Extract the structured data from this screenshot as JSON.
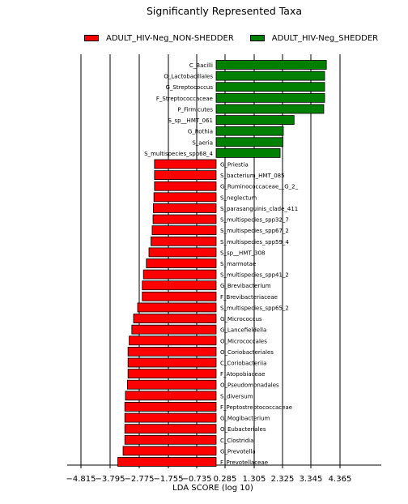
{
  "colors": {
    "non_shedder": "#ff0000",
    "shedder": "#008000",
    "axis": "#000000",
    "grid": "#000000"
  },
  "chart_data": {
    "type": "bar",
    "orientation": "horizontal",
    "title": "Significantly Represented Taxa",
    "xlabel": "LDA SCORE (log 10)",
    "ylabel": "",
    "xlim": [
      -5.4,
      5.4
    ],
    "xticks": [
      -4.815,
      -3.795,
      -2.775,
      -1.755,
      -0.735,
      0.285,
      1.305,
      2.325,
      3.345,
      4.365
    ],
    "xtick_labels": [
      "−4.815",
      "−3.795",
      "−2.775",
      "−1.755",
      "−0.735",
      "0.285",
      "1.305",
      "2.325",
      "3.345",
      "4.365"
    ],
    "grid": true,
    "legend_position": "top",
    "series": [
      {
        "name": "ADULT_HIV-Neg_NON-SHEDDER",
        "color": "#ff0000"
      },
      {
        "name": "ADULT_HIV-Neg_SHEDDER",
        "color": "#008000"
      }
    ],
    "bars": [
      {
        "label": "C_Bacilli",
        "value": 3.79,
        "series": 1
      },
      {
        "label": "O_Lactobacillales",
        "value": 3.73,
        "series": 1
      },
      {
        "label": "G_Streptococcus",
        "value": 3.73,
        "series": 1
      },
      {
        "label": "F_Streptococcaceae",
        "value": 3.73,
        "series": 1
      },
      {
        "label": "P_Firmicutes",
        "value": 3.7,
        "series": 1
      },
      {
        "label": "S_sp__HMT_061",
        "value": 2.68,
        "series": 1
      },
      {
        "label": "G_Rothia",
        "value": 2.31,
        "series": 1
      },
      {
        "label": "S_aeria",
        "value": 2.3,
        "series": 1
      },
      {
        "label": "S_multispecies_spp68_4",
        "value": 2.2,
        "series": 1
      },
      {
        "label": "G_Priestia",
        "value": -2.12,
        "series": 0
      },
      {
        "label": "S_bacterium_HMT_085",
        "value": -2.12,
        "series": 0
      },
      {
        "label": "G_Ruminococcaceae__G_2_",
        "value": -2.12,
        "series": 0
      },
      {
        "label": "S_neglectum",
        "value": -2.14,
        "series": 0
      },
      {
        "label": "S_parasanguinis_clade_411",
        "value": -2.16,
        "series": 0
      },
      {
        "label": "S_multispecies_spp32_7",
        "value": -2.17,
        "series": 0
      },
      {
        "label": "S_multispecies_spp67_2",
        "value": -2.2,
        "series": 0
      },
      {
        "label": "S_multispecies_spp59_4",
        "value": -2.24,
        "series": 0
      },
      {
        "label": "S_sp__HMT_308",
        "value": -2.31,
        "series": 0
      },
      {
        "label": "S_marmotae",
        "value": -2.4,
        "series": 0
      },
      {
        "label": "S_multispecies_spp41_2",
        "value": -2.5,
        "series": 0
      },
      {
        "label": "G_Brevibacterium",
        "value": -2.54,
        "series": 0
      },
      {
        "label": "F_Brevibacteriaceae",
        "value": -2.54,
        "series": 0
      },
      {
        "label": "S_multispecies_spp65_2",
        "value": -2.7,
        "series": 0
      },
      {
        "label": "G_Micrococcus",
        "value": -2.84,
        "series": 0
      },
      {
        "label": "G_Lancefieldella",
        "value": -2.9,
        "series": 0
      },
      {
        "label": "O_Micrococcales",
        "value": -2.99,
        "series": 0
      },
      {
        "label": "O_Coriobacteriales",
        "value": -3.03,
        "series": 0
      },
      {
        "label": "C_Coriobacteriia",
        "value": -3.03,
        "series": 0
      },
      {
        "label": "F_Atopobiaceae",
        "value": -3.03,
        "series": 0
      },
      {
        "label": "O_Pseudomonadales",
        "value": -3.05,
        "series": 0
      },
      {
        "label": "S_diversum",
        "value": -3.12,
        "series": 0
      },
      {
        "label": "F_Peptostreptococcaceae",
        "value": -3.14,
        "series": 0
      },
      {
        "label": "G_Mogibacterium",
        "value": -3.14,
        "series": 0
      },
      {
        "label": "O_Eubacteriales",
        "value": -3.14,
        "series": 0
      },
      {
        "label": "C_Clostridia",
        "value": -3.14,
        "series": 0
      },
      {
        "label": "G_Prevotella",
        "value": -3.2,
        "series": 0
      },
      {
        "label": "F_Prevotellaceae",
        "value": -3.38,
        "series": 0
      }
    ]
  }
}
